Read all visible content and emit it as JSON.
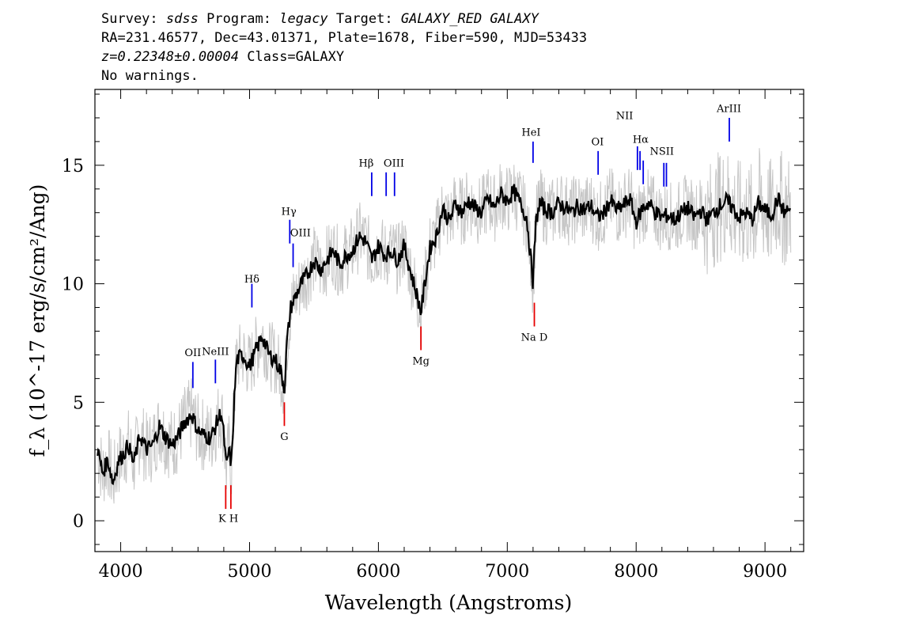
{
  "header": {
    "survey_label": "Survey:",
    "survey": "sdss",
    "program_label": "Program:",
    "program": "legacy",
    "target_label": "Target:",
    "target": "GALAXY_RED GALAXY",
    "line2": "RA=231.46577, Dec=43.01371, Plate=1678, Fiber=590, MJD=53433",
    "redshift": "z=0.22348±0.00004",
    "class_text": "Class=GALAXY",
    "warnings": "No warnings."
  },
  "chart_data": {
    "type": "line",
    "xlabel": "Wavelength (Angstroms)",
    "ylabel": "f_λ (10^-17 erg/s/cm²/Ang)",
    "xlim": [
      3800,
      9300
    ],
    "ylim": [
      -1.3,
      18.2
    ],
    "x_ticks": [
      4000,
      5000,
      6000,
      7000,
      8000,
      9000
    ],
    "y_ticks": [
      0,
      5,
      10,
      15
    ],
    "series": [
      {
        "role": "flux-smoothed",
        "color": "#000000",
        "x": [
          3820,
          3860,
          3900,
          3940,
          3980,
          4020,
          4060,
          4100,
          4150,
          4200,
          4250,
          4300,
          4350,
          4400,
          4450,
          4500,
          4550,
          4600,
          4650,
          4700,
          4750,
          4780,
          4800,
          4820,
          4840,
          4860,
          4880,
          4900,
          4950,
          5000,
          5050,
          5100,
          5150,
          5200,
          5250,
          5270,
          5290,
          5320,
          5360,
          5400,
          5450,
          5500,
          5550,
          5600,
          5650,
          5700,
          5750,
          5800,
          5850,
          5900,
          5950,
          6000,
          6050,
          6100,
          6150,
          6200,
          6250,
          6300,
          6330,
          6360,
          6400,
          6450,
          6500,
          6550,
          6600,
          6650,
          6700,
          6750,
          6800,
          6850,
          6900,
          6950,
          7000,
          7050,
          7100,
          7150,
          7180,
          7200,
          7220,
          7250,
          7300,
          7350,
          7400,
          7450,
          7500,
          7550,
          7600,
          7650,
          7700,
          7750,
          7800,
          7850,
          7900,
          7950,
          8000,
          8050,
          8100,
          8150,
          8200,
          8250,
          8300,
          8350,
          8400,
          8450,
          8500,
          8550,
          8600,
          8650,
          8700,
          8750,
          8800,
          8850,
          8900,
          8950,
          9000,
          9050,
          9100,
          9150,
          9200
        ],
        "y": [
          3.0,
          2.0,
          2.6,
          1.6,
          2.5,
          2.8,
          3.2,
          2.4,
          3.6,
          3.0,
          3.2,
          4.0,
          3.5,
          3.2,
          3.6,
          4.2,
          4.5,
          3.8,
          3.6,
          3.5,
          4.2,
          4.6,
          3.6,
          2.2,
          3.0,
          2.3,
          5.0,
          6.8,
          7.0,
          6.5,
          7.2,
          7.8,
          7.0,
          6.8,
          6.2,
          5.5,
          7.5,
          9.0,
          9.5,
          10.0,
          10.4,
          11.0,
          10.6,
          11.0,
          11.4,
          10.8,
          11.2,
          11.4,
          12.0,
          11.8,
          11.0,
          11.6,
          11.2,
          11.4,
          11.0,
          11.6,
          10.5,
          9.5,
          8.8,
          10.0,
          11.5,
          12.0,
          13.2,
          12.6,
          13.4,
          13.0,
          13.5,
          13.2,
          13.0,
          13.6,
          13.2,
          13.8,
          13.5,
          13.9,
          13.4,
          12.8,
          11.2,
          10.0,
          12.5,
          13.4,
          13.1,
          13.0,
          13.4,
          13.2,
          13.0,
          13.3,
          13.1,
          13.3,
          12.8,
          13.0,
          13.5,
          13.1,
          13.3,
          13.6,
          12.6,
          13.2,
          13.4,
          13.0,
          12.8,
          12.9,
          12.7,
          13.0,
          13.2,
          12.8,
          13.1,
          12.7,
          13.0,
          13.3,
          13.5,
          13.2,
          12.8,
          13.0,
          12.7,
          13.4,
          13.1,
          12.9,
          13.6,
          13.0,
          13.2
        ]
      }
    ],
    "emission_lines": [
      {
        "label": "OII",
        "x": 4560,
        "y": 5.6,
        "top": 6.7
      },
      {
        "label": "NeIII",
        "x": 4735,
        "y": 5.8,
        "top": 6.8
      },
      {
        "label": "Hδ",
        "x": 5018,
        "y": 9.0,
        "top": 10.0
      },
      {
        "label": "Hγ",
        "x": 5312,
        "y": 11.7,
        "top": 12.7
      },
      {
        "label": "OIII",
        "x": 5338,
        "y": 10.7,
        "top": 11.7
      },
      {
        "label": "Hβ",
        "x": 5948,
        "y": 13.7,
        "top": 14.7
      },
      {
        "label": "OIII",
        "x": 6060,
        "y": 13.7,
        "top": 14.7
      },
      {
        "label": "OIII",
        "x": 6125,
        "y": 13.7,
        "top": 14.7
      },
      {
        "label": "HeI",
        "x": 7200,
        "y": 15.1,
        "top": 16.0
      },
      {
        "label": "OI",
        "x": 7705,
        "y": 14.6,
        "top": 15.6
      },
      {
        "label": "NII",
        "x": 8010,
        "y": 14.8,
        "top": 15.8
      },
      {
        "label": "Hα",
        "x": 8030,
        "y": 14.8,
        "top": 15.6
      },
      {
        "label": "NII",
        "x": 8055,
        "y": 14.2,
        "top": 15.2
      },
      {
        "label": "SII",
        "x": 8215,
        "y": 14.1,
        "top": 15.1
      },
      {
        "label": "SII",
        "x": 8235,
        "y": 14.1,
        "top": 15.1
      },
      {
        "label": "ArIII",
        "x": 8723,
        "y": 16.0,
        "top": 17.0
      }
    ],
    "emission_label_positions": [
      {
        "text": "OII",
        "x": 4560,
        "y": 6.95
      },
      {
        "text": "NeIII",
        "x": 4735,
        "y": 7.0
      },
      {
        "text": "Hδ",
        "x": 5018,
        "y": 10.05
      },
      {
        "text": "Hγ",
        "x": 5305,
        "y": 12.9
      },
      {
        "text": "OIII",
        "x": 5395,
        "y": 12.0
      },
      {
        "text": "Hβ",
        "x": 5905,
        "y": 14.95
      },
      {
        "text": "OIII",
        "x": 6120,
        "y": 14.95
      },
      {
        "text": "HeI",
        "x": 7185,
        "y": 16.25
      },
      {
        "text": "OI",
        "x": 7700,
        "y": 15.85
      },
      {
        "text": "NII",
        "x": 7910,
        "y": 16.95
      },
      {
        "text": "Hα",
        "x": 8035,
        "y": 15.95
      },
      {
        "text": "NSII",
        "x": 8200,
        "y": 15.45
      },
      {
        "text": "ArIII",
        "x": 8720,
        "y": 17.25
      }
    ],
    "absorption_lines": [
      {
        "label": "K",
        "x": 4815,
        "y": 1.5,
        "bottom": 0.5
      },
      {
        "label": "H",
        "x": 4855,
        "y": 1.5,
        "bottom": 0.5
      },
      {
        "label": "G",
        "x": 5270,
        "y": 5.0,
        "bottom": 4.0
      },
      {
        "label": "Mg",
        "x": 6330,
        "y": 8.2,
        "bottom": 7.2
      },
      {
        "label": "Na D",
        "x": 7210,
        "y": 9.2,
        "bottom": 8.2
      }
    ],
    "absorption_label_positions": [
      {
        "text": "K H",
        "x": 4835,
        "y": -0.05
      },
      {
        "text": "G",
        "x": 5270,
        "y": 3.4
      },
      {
        "text": "Mg",
        "x": 6330,
        "y": 6.6
      },
      {
        "text": "Na D",
        "x": 7210,
        "y": 7.6
      }
    ]
  },
  "colors": {
    "flux": "#000000",
    "error": "#c6c6c6",
    "emission": "#0000e6",
    "absorption": "#e60000"
  }
}
